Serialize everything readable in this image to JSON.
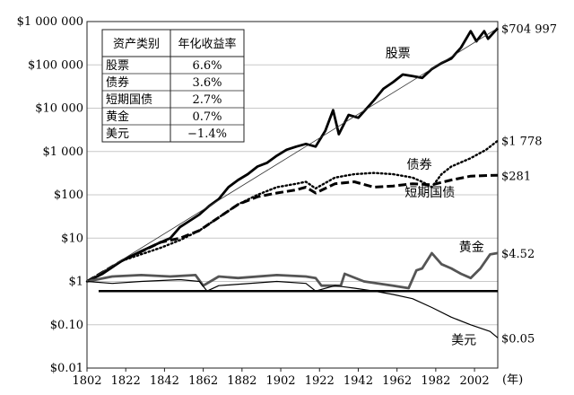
{
  "chart_data": {
    "type": "line",
    "title": "",
    "xlabel": "(年)",
    "ylabel": "",
    "y_scale": "log",
    "ylim": [
      0.01,
      1000000
    ],
    "xlim": [
      1802,
      2014
    ],
    "y_ticks": [
      {
        "value": 1000000,
        "label": "$1 000 000"
      },
      {
        "value": 100000,
        "label": "$100 000"
      },
      {
        "value": 10000,
        "label": "$10 000"
      },
      {
        "value": 1000,
        "label": "$1 000"
      },
      {
        "value": 100,
        "label": "$100"
      },
      {
        "value": 10,
        "label": "$10"
      },
      {
        "value": 1,
        "label": "$1"
      },
      {
        "value": 0.1,
        "label": "$0.10"
      },
      {
        "value": 0.01,
        "label": "$0.01"
      }
    ],
    "x_ticks": [
      "1802",
      "1822",
      "1842",
      "1862",
      "1882",
      "1902",
      "1922",
      "1942",
      "1962",
      "1982",
      "2002"
    ],
    "x_tick_values": [
      1802,
      1822,
      1842,
      1862,
      1882,
      1902,
      1922,
      1942,
      1962,
      1982,
      2002
    ],
    "grid": true,
    "reference_line": 0.6,
    "series": [
      {
        "name": "股票",
        "end_label": "$704 997",
        "style": "thick-solid",
        "points": [
          [
            1802,
            1
          ],
          [
            1810,
            1.5
          ],
          [
            1820,
            3
          ],
          [
            1830,
            5
          ],
          [
            1840,
            8
          ],
          [
            1845,
            10
          ],
          [
            1850,
            18
          ],
          [
            1855,
            25
          ],
          [
            1860,
            35
          ],
          [
            1865,
            55
          ],
          [
            1870,
            80
          ],
          [
            1875,
            150
          ],
          [
            1880,
            220
          ],
          [
            1885,
            300
          ],
          [
            1890,
            450
          ],
          [
            1895,
            550
          ],
          [
            1900,
            800
          ],
          [
            1905,
            1100
          ],
          [
            1910,
            1300
          ],
          [
            1915,
            1500
          ],
          [
            1920,
            1300
          ],
          [
            1925,
            3000
          ],
          [
            1929,
            9000
          ],
          [
            1932,
            2500
          ],
          [
            1937,
            7000
          ],
          [
            1942,
            6000
          ],
          [
            1950,
            15000
          ],
          [
            1955,
            28000
          ],
          [
            1960,
            40000
          ],
          [
            1965,
            60000
          ],
          [
            1970,
            55000
          ],
          [
            1975,
            50000
          ],
          [
            1980,
            80000
          ],
          [
            1985,
            110000
          ],
          [
            1990,
            140000
          ],
          [
            1995,
            250000
          ],
          [
            2000,
            600000
          ],
          [
            2003,
            350000
          ],
          [
            2007,
            600000
          ],
          [
            2009,
            400000
          ],
          [
            2014,
            704997
          ]
        ]
      },
      {
        "name": "债券",
        "end_label": "$1 778",
        "style": "dotted",
        "points": [
          [
            1802,
            1
          ],
          [
            1820,
            3
          ],
          [
            1840,
            6
          ],
          [
            1850,
            9
          ],
          [
            1860,
            15
          ],
          [
            1870,
            30
          ],
          [
            1880,
            60
          ],
          [
            1890,
            100
          ],
          [
            1900,
            150
          ],
          [
            1910,
            180
          ],
          [
            1915,
            200
          ],
          [
            1920,
            140
          ],
          [
            1930,
            250
          ],
          [
            1940,
            300
          ],
          [
            1950,
            320
          ],
          [
            1960,
            300
          ],
          [
            1970,
            250
          ],
          [
            1975,
            200
          ],
          [
            1980,
            150
          ],
          [
            1985,
            300
          ],
          [
            1990,
            450
          ],
          [
            2000,
            700
          ],
          [
            2008,
            1100
          ],
          [
            2014,
            1778
          ]
        ]
      },
      {
        "name": "短期国债",
        "end_label": "$281",
        "style": "thick-dashed",
        "points": [
          [
            1802,
            1
          ],
          [
            1820,
            3
          ],
          [
            1840,
            8
          ],
          [
            1850,
            10
          ],
          [
            1860,
            15
          ],
          [
            1870,
            30
          ],
          [
            1880,
            60
          ],
          [
            1890,
            90
          ],
          [
            1900,
            110
          ],
          [
            1910,
            130
          ],
          [
            1915,
            150
          ],
          [
            1920,
            110
          ],
          [
            1930,
            180
          ],
          [
            1940,
            200
          ],
          [
            1950,
            150
          ],
          [
            1960,
            160
          ],
          [
            1970,
            180
          ],
          [
            1980,
            170
          ],
          [
            1990,
            220
          ],
          [
            2000,
            270
          ],
          [
            2010,
            280
          ],
          [
            2014,
            281
          ]
        ]
      },
      {
        "name": "黄金",
        "end_label": "$4.52",
        "style": "thick-solid-gray",
        "points": [
          [
            1802,
            1
          ],
          [
            1815,
            1.3
          ],
          [
            1830,
            1.4
          ],
          [
            1845,
            1.3
          ],
          [
            1858,
            1.4
          ],
          [
            1862,
            0.8
          ],
          [
            1870,
            1.3
          ],
          [
            1880,
            1.2
          ],
          [
            1900,
            1.4
          ],
          [
            1915,
            1.3
          ],
          [
            1920,
            1.2
          ],
          [
            1923,
            0.8
          ],
          [
            1933,
            0.8
          ],
          [
            1935,
            1.5
          ],
          [
            1945,
            1
          ],
          [
            1960,
            0.8
          ],
          [
            1968,
            0.7
          ],
          [
            1972,
            1.8
          ],
          [
            1975,
            2
          ],
          [
            1980,
            4.5
          ],
          [
            1985,
            2.5
          ],
          [
            1990,
            2
          ],
          [
            1995,
            1.5
          ],
          [
            2000,
            1.2
          ],
          [
            2005,
            2
          ],
          [
            2010,
            4.2
          ],
          [
            2014,
            4.52
          ]
        ]
      },
      {
        "name": "美元",
        "end_label": "$0.05",
        "style": "thin-solid",
        "points": [
          [
            1802,
            1
          ],
          [
            1815,
            0.9
          ],
          [
            1830,
            1
          ],
          [
            1850,
            1.1
          ],
          [
            1860,
            1
          ],
          [
            1864,
            0.6
          ],
          [
            1870,
            0.8
          ],
          [
            1900,
            1
          ],
          [
            1915,
            0.9
          ],
          [
            1920,
            0.6
          ],
          [
            1930,
            0.8
          ],
          [
            1940,
            0.7
          ],
          [
            1950,
            0.6
          ],
          [
            1960,
            0.5
          ],
          [
            1970,
            0.4
          ],
          [
            1980,
            0.25
          ],
          [
            1990,
            0.15
          ],
          [
            2000,
            0.1
          ],
          [
            2010,
            0.07
          ],
          [
            2014,
            0.05
          ]
        ]
      }
    ],
    "inline_labels": [
      {
        "series": "股票",
        "text": "股票",
        "x": 1956,
        "y": 150000
      },
      {
        "series": "债券",
        "text": "债券",
        "x": 1967,
        "y": 400
      },
      {
        "series": "短期国债",
        "text": "短期国债",
        "x": 1966,
        "y": 90
      },
      {
        "series": "黄金",
        "text": "黄金",
        "x": 1994,
        "y": 5
      },
      {
        "series": "美元",
        "text": "美元",
        "x": 1990,
        "y": 0.035
      }
    ],
    "legend_table": {
      "placement": "top-left",
      "headers": [
        "资产类别",
        "年化收益率"
      ],
      "rows": [
        [
          "股票",
          "6.6%"
        ],
        [
          "债券",
          "3.6%"
        ],
        [
          "短期国债",
          "2.7%"
        ],
        [
          "黄金",
          "0.7%"
        ],
        [
          "美元",
          "−1.4%"
        ]
      ]
    }
  }
}
